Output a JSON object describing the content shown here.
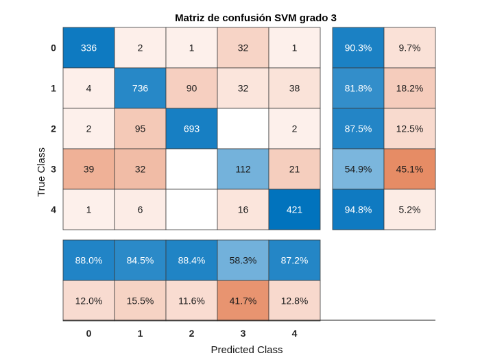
{
  "chart_data": {
    "type": "heatmap",
    "title": "Matriz de confusión SVM grado 3",
    "xlabel": "Predicted Class",
    "ylabel": "True Class",
    "classes": [
      "0",
      "1",
      "2",
      "3",
      "4"
    ],
    "matrix": [
      [
        336,
        2,
        1,
        32,
        1
      ],
      [
        4,
        736,
        90,
        32,
        38
      ],
      [
        2,
        95,
        693,
        null,
        2
      ],
      [
        39,
        32,
        null,
        112,
        21
      ],
      [
        1,
        6,
        null,
        16,
        421
      ]
    ],
    "row_summary": [
      [
        "90.3%",
        "9.7%"
      ],
      [
        "81.8%",
        "18.2%"
      ],
      [
        "87.5%",
        "12.5%"
      ],
      [
        "54.9%",
        "45.1%"
      ],
      [
        "94.8%",
        "5.2%"
      ]
    ],
    "column_summary": [
      [
        "88.0%",
        "84.5%",
        "88.4%",
        "58.3%",
        "87.2%"
      ],
      [
        "12.0%",
        "15.5%",
        "11.6%",
        "41.7%",
        "12.8%"
      ]
    ],
    "colors": {
      "correct": "#0072BD",
      "incorrect": "#D95319",
      "empty": "#ffffff",
      "grid": "#3a3a3a"
    }
  }
}
